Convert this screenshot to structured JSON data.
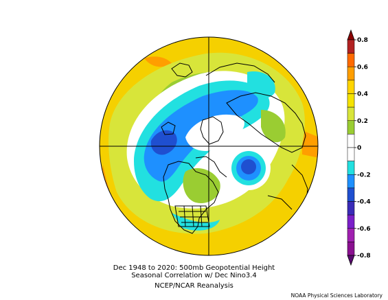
{
  "figure": {
    "caption_line1": "Dec 1948 to 2020: 500mb Geopotential Height",
    "caption_line2": "Seasonal Correlation w/ Dec Nino3.4",
    "caption_line3": "NCEP/NCAR Reanalysis",
    "credit": "NOAA Physical Sciences Laboratory"
  },
  "colorbar": {
    "tick_labels": [
      "0.8",
      "0.6",
      "0.4",
      "0.2",
      "0",
      "-0.2",
      "-0.4",
      "-0.6",
      "-0.8"
    ],
    "colors": [
      "#b22222",
      "#ff6a00",
      "#ff9e00",
      "#ffd500",
      "#f5e300",
      "#d8e53a",
      "#9acd32",
      "#ffffff",
      "#ffffff",
      "#22e0e0",
      "#1e90ff",
      "#1f4fd0",
      "#3a2bb8",
      "#7a1fc9",
      "#a020b0",
      "#8a1090"
    ]
  },
  "colors": {
    "background_field": "#f5d000",
    "positive_strong": "#ff9e00",
    "positive_light": "#9acd32",
    "neutral": "#ffffff",
    "negative_light": "#22e0e0",
    "negative_mid": "#1e90ff",
    "negative_strong": "#1f4fd0"
  }
}
